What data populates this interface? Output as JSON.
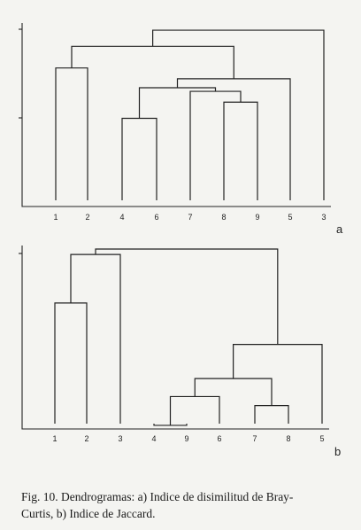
{
  "chart_data": [
    {
      "type": "dendrogram",
      "panel": "a",
      "leaves": [
        "1",
        "2",
        "4",
        "6",
        "7",
        "8",
        "9",
        "5",
        "3"
      ],
      "ylim": [
        0,
        1
      ],
      "links": [
        {
          "left": "1",
          "right": "2",
          "height": 0.77
        },
        {
          "left": "8",
          "right": "9",
          "height": 0.58
        },
        {
          "left": "7",
          "right": "(8,9)",
          "height": 0.64
        },
        {
          "left": "4",
          "right": "6",
          "height": 0.49
        },
        {
          "left": "(4,6)",
          "right": "(7,8,9)",
          "height": 0.66
        },
        {
          "left": "(4,6,7,8,9)",
          "right": "5",
          "height": 0.71
        },
        {
          "left": "(1,2)",
          "right": "(4,6,7,8,9,5)",
          "height": 0.89
        },
        {
          "left": "(1,2,4,6,7,8,9,5)",
          "right": "3",
          "height": 0.98
        }
      ]
    },
    {
      "type": "dendrogram",
      "panel": "b",
      "leaves": [
        "1",
        "2",
        "3",
        "4",
        "9",
        "6",
        "7",
        "8",
        "5"
      ],
      "ylim": [
        0,
        1
      ],
      "links": [
        {
          "left": "1",
          "right": "2",
          "height": 0.7
        },
        {
          "left": "4",
          "right": "9",
          "height": 0.02
        },
        {
          "left": "(4,9)",
          "right": "6",
          "height": 0.18
        },
        {
          "left": "7",
          "right": "8",
          "height": 0.13
        },
        {
          "left": "(4,9,6)",
          "right": "(7,8)",
          "height": 0.28
        },
        {
          "left": "(4,9,6,7,8)",
          "right": "5",
          "height": 0.47
        },
        {
          "left": "(1,2)",
          "right": "3",
          "height": 0.97
        },
        {
          "left": "(1,2,3)",
          "right": "(4,9,6,7,8,5)",
          "height": 1.0
        }
      ]
    }
  ],
  "caption": {
    "line1": "Fig. 10. Dendrogramas: a) Indice de disimilitud de Bray-",
    "line2": "Curtis, b) Indice de Jaccard."
  }
}
